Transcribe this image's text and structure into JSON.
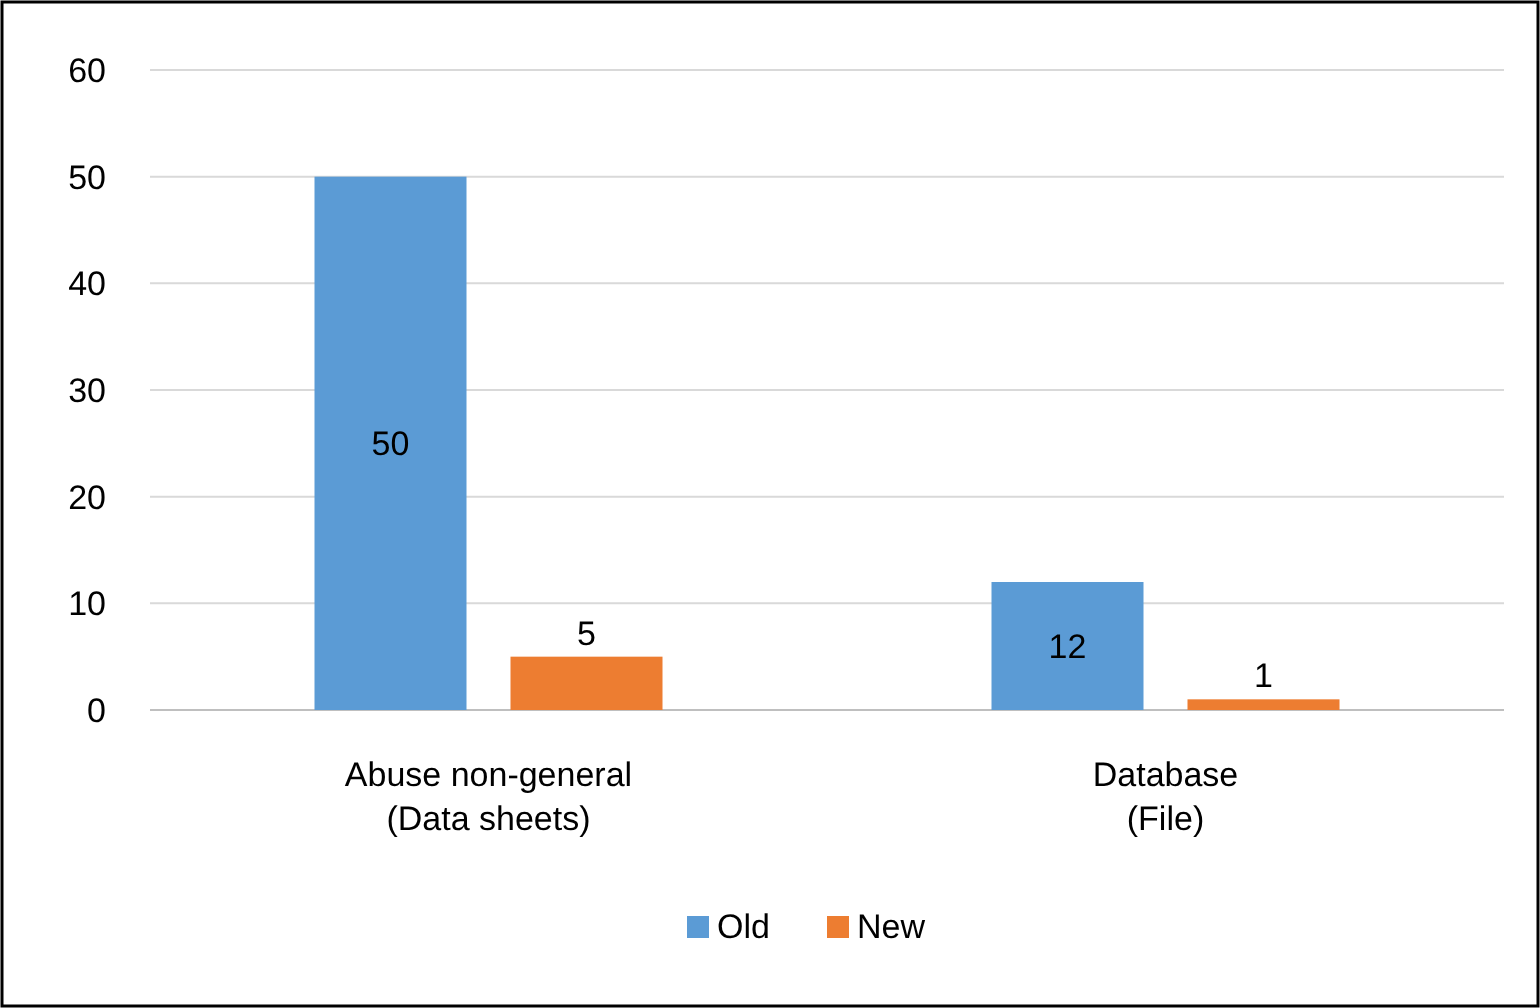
{
  "chart_data": {
    "type": "bar",
    "categories": [
      "Abuse non-general\n(Data sheets)",
      "Database\n(File)"
    ],
    "series": [
      {
        "name": "Old",
        "color": "#5b9bd5",
        "values": [
          50,
          12
        ]
      },
      {
        "name": "New",
        "color": "#ed7d31",
        "values": [
          5,
          1
        ]
      }
    ],
    "ylim": [
      0,
      60
    ],
    "yticks": [
      0,
      10,
      20,
      30,
      40,
      50,
      60
    ],
    "grid": "y",
    "legend": "bottom",
    "data_labels": true
  }
}
